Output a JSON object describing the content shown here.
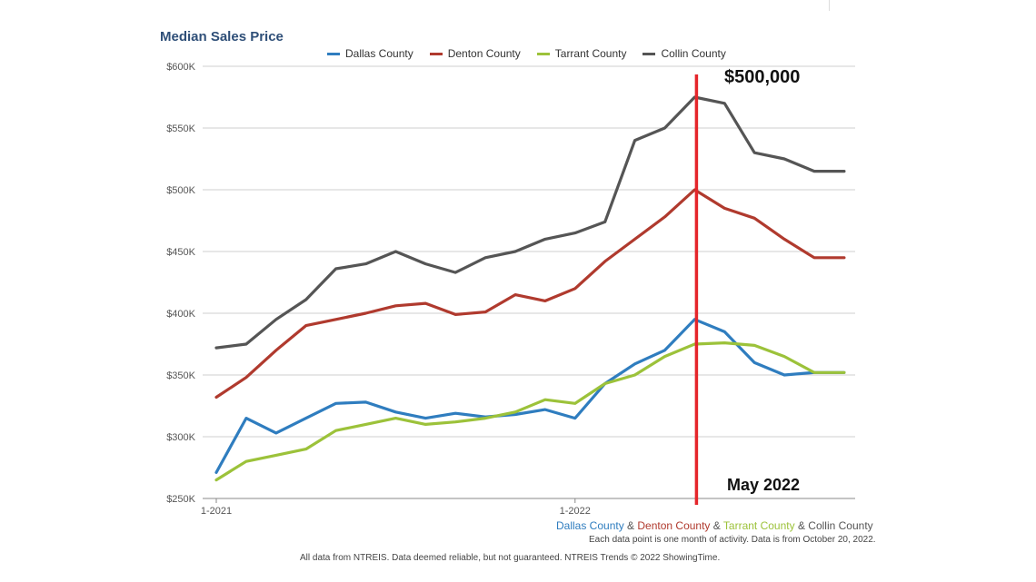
{
  "title": "Median Sales Price",
  "subtitle_parts": [
    {
      "text": "Dallas County",
      "color": "#2f7dbf"
    },
    {
      "text": " & ",
      "color": "#555555"
    },
    {
      "text": "Denton County",
      "color": "#b03a2e"
    },
    {
      "text": " & ",
      "color": "#555555"
    },
    {
      "text": "Tarrant County",
      "color": "#9cc23a"
    },
    {
      "text": " & ",
      "color": "#555555"
    },
    {
      "text": "Collin County",
      "color": "#555555"
    }
  ],
  "note": "Each data point is one month of activity. Data is from October 20, 2022.",
  "footer": "All data from NTREIS. Data deemed reliable, but not guaranteed. NTREIS Trends © 2022 ShowingTime.",
  "annotations": {
    "top_label": "$500,000",
    "bottom_label": "May 2022",
    "marker_color": "#e5252a"
  },
  "chart_data": {
    "type": "line",
    "title": "Median Sales Price",
    "x_tick_labels": [
      "1-2021",
      "1-2022"
    ],
    "x": [
      "2021-01",
      "2021-02",
      "2021-03",
      "2021-04",
      "2021-05",
      "2021-06",
      "2021-07",
      "2021-08",
      "2021-09",
      "2021-10",
      "2021-11",
      "2021-12",
      "2022-01",
      "2022-02",
      "2022-03",
      "2022-04",
      "2022-05",
      "2022-06",
      "2022-07",
      "2022-08",
      "2022-09",
      "2022-10"
    ],
    "y_ticks": [
      "$250K",
      "$300K",
      "$350K",
      "$400K",
      "$450K",
      "$500K",
      "$550K",
      "$600K"
    ],
    "ylim": [
      250,
      600
    ],
    "grid": true,
    "legend_position": "top",
    "highlight": {
      "x": "2022-05",
      "value": 500
    },
    "series": [
      {
        "name": "Dallas County",
        "color": "#2f7dbf",
        "values": [
          271,
          315,
          303,
          315,
          327,
          328,
          320,
          315,
          319,
          316,
          318,
          322,
          315,
          343,
          359,
          370,
          395,
          385,
          360,
          350,
          352,
          352
        ]
      },
      {
        "name": "Denton County",
        "color": "#b03a2e",
        "values": [
          332,
          348,
          370,
          390,
          395,
          400,
          406,
          408,
          399,
          401,
          415,
          410,
          420,
          442,
          460,
          478,
          500,
          485,
          477,
          460,
          445,
          445
        ]
      },
      {
        "name": "Tarrant County",
        "color": "#9cc23a",
        "values": [
          265,
          280,
          285,
          290,
          305,
          310,
          315,
          310,
          312,
          315,
          320,
          330,
          327,
          343,
          350,
          365,
          375,
          376,
          374,
          365,
          352,
          352
        ]
      },
      {
        "name": "Collin County",
        "color": "#555555",
        "values": [
          372,
          375,
          395,
          411,
          436,
          440,
          450,
          440,
          433,
          445,
          450,
          460,
          465,
          474,
          540,
          550,
          575,
          570,
          530,
          525,
          515,
          515
        ]
      }
    ]
  }
}
